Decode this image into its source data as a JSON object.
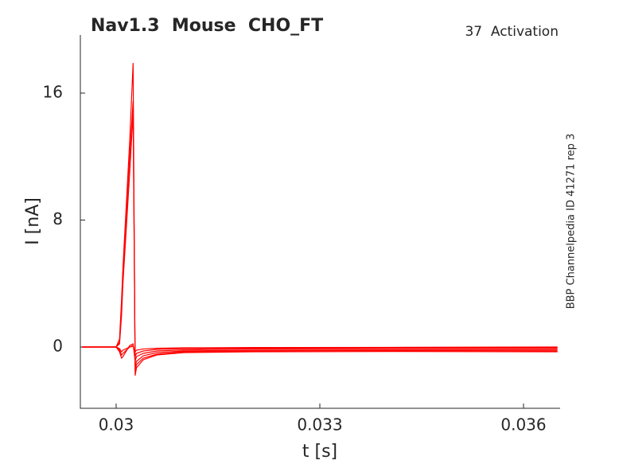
{
  "chart_data": {
    "type": "line",
    "title": "Nav1.3  Mouse  CHO_FT",
    "annotation": "37  Activation",
    "side_note": "BBP Channelpedia ID 41271 rep 3",
    "x_label": "t [s]",
    "y_label": "I [nA]",
    "x": [
      0.0295,
      0.03,
      0.03005,
      0.03008,
      0.0301,
      0.0302,
      0.03025,
      0.03028,
      0.0303,
      0.0304,
      0.0306,
      0.031,
      0.032,
      0.034,
      0.0365
    ],
    "series": [
      {
        "color": "#ff0000",
        "values": [
          0,
          0,
          0.5,
          3,
          5,
          13,
          17.9,
          -1.8,
          -1.3,
          -0.8,
          -0.5,
          -0.35,
          -0.3,
          -0.28,
          -0.3
        ]
      },
      {
        "color": "#ff0000",
        "values": [
          0,
          0,
          0.3,
          2.5,
          4.5,
          12,
          15.5,
          -1.5,
          -1.1,
          -0.7,
          -0.45,
          -0.3,
          -0.25,
          -0.22,
          -0.25
        ]
      },
      {
        "color": "#ff0000",
        "values": [
          0,
          0,
          0.2,
          2,
          4,
          11,
          14.8,
          -1.2,
          -0.9,
          -0.55,
          -0.35,
          -0.25,
          -0.2,
          -0.18,
          -0.18
        ]
      },
      {
        "color": "#ff0000",
        "values": [
          0,
          0,
          -0.3,
          -0.7,
          -0.6,
          0.1,
          0.2,
          -0.9,
          -0.6,
          -0.4,
          -0.25,
          -0.18,
          -0.12,
          -0.1,
          -0.1
        ]
      },
      {
        "color": "#ff0000",
        "values": [
          0,
          0,
          -0.2,
          -0.5,
          -0.4,
          0,
          0.1,
          -0.6,
          -0.4,
          -0.25,
          -0.15,
          -0.1,
          -0.08,
          -0.05,
          -0.05
        ]
      },
      {
        "color": "#ff0000",
        "values": [
          0,
          0,
          -0.1,
          -0.3,
          -0.2,
          0,
          0.05,
          -0.3,
          -0.2,
          -0.12,
          -0.08,
          -0.05,
          -0.03,
          -0.02,
          0
        ]
      }
    ],
    "xlim": [
      0.029473,
      0.036539
    ],
    "xticks": [
      0.03,
      0.033,
      0.036
    ],
    "ylim": [
      -3.86,
      19.66
    ],
    "yticks": [
      0,
      8,
      16
    ]
  }
}
